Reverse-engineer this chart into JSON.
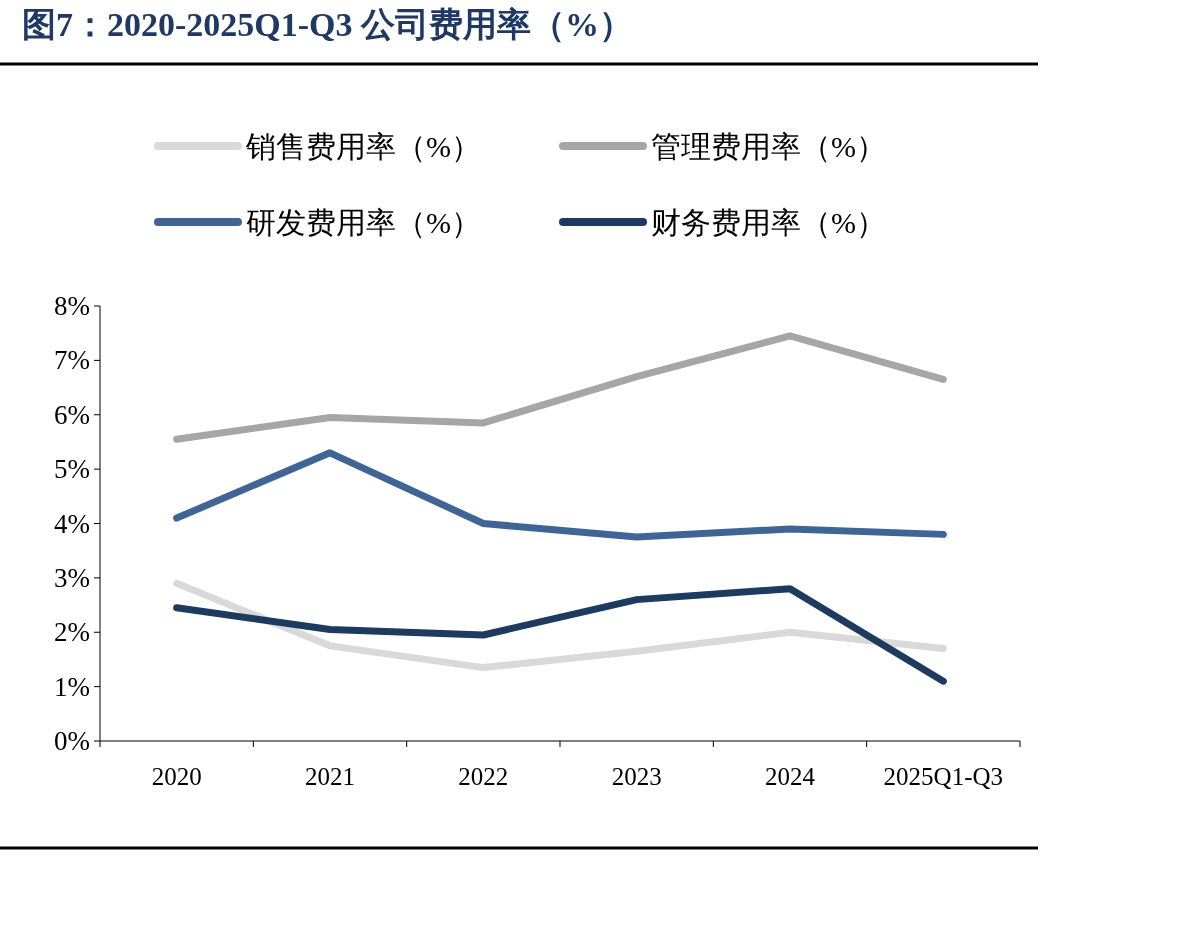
{
  "chart_data": {
    "type": "line",
    "title": "图7：2020-2025Q1-Q3 公司费用率（%）",
    "categories": [
      "2020",
      "2021",
      "2022",
      "2023",
      "2024",
      "2025Q1-Q3"
    ],
    "series": [
      {
        "name": "销售费用率（%）",
        "color": "#d9d9d9",
        "values": [
          2.9,
          1.75,
          1.35,
          1.65,
          2.0,
          1.7
        ]
      },
      {
        "name": "管理费用率（%）",
        "color": "#a6a6a6",
        "values": [
          5.55,
          5.95,
          5.85,
          6.7,
          7.45,
          6.65
        ]
      },
      {
        "name": "研发费用率（%）",
        "color": "#3f6496",
        "values": [
          4.1,
          5.3,
          4.0,
          3.75,
          3.9,
          3.8
        ]
      },
      {
        "name": "财务费用率（%）",
        "color": "#1d3a5f",
        "values": [
          2.45,
          2.05,
          1.95,
          2.6,
          2.8,
          1.1
        ]
      }
    ],
    "ylim": [
      0,
      8
    ],
    "yticks": [
      {
        "value": 0,
        "label": "0%"
      },
      {
        "value": 1,
        "label": "1%"
      },
      {
        "value": 2,
        "label": "2%"
      },
      {
        "value": 3,
        "label": "3%"
      },
      {
        "value": 4,
        "label": "4%"
      },
      {
        "value": 5,
        "label": "5%"
      },
      {
        "value": 6,
        "label": "6%"
      },
      {
        "value": 7,
        "label": "7%"
      },
      {
        "value": 8,
        "label": "8%"
      }
    ],
    "legend": "top",
    "line_style": "solid"
  }
}
